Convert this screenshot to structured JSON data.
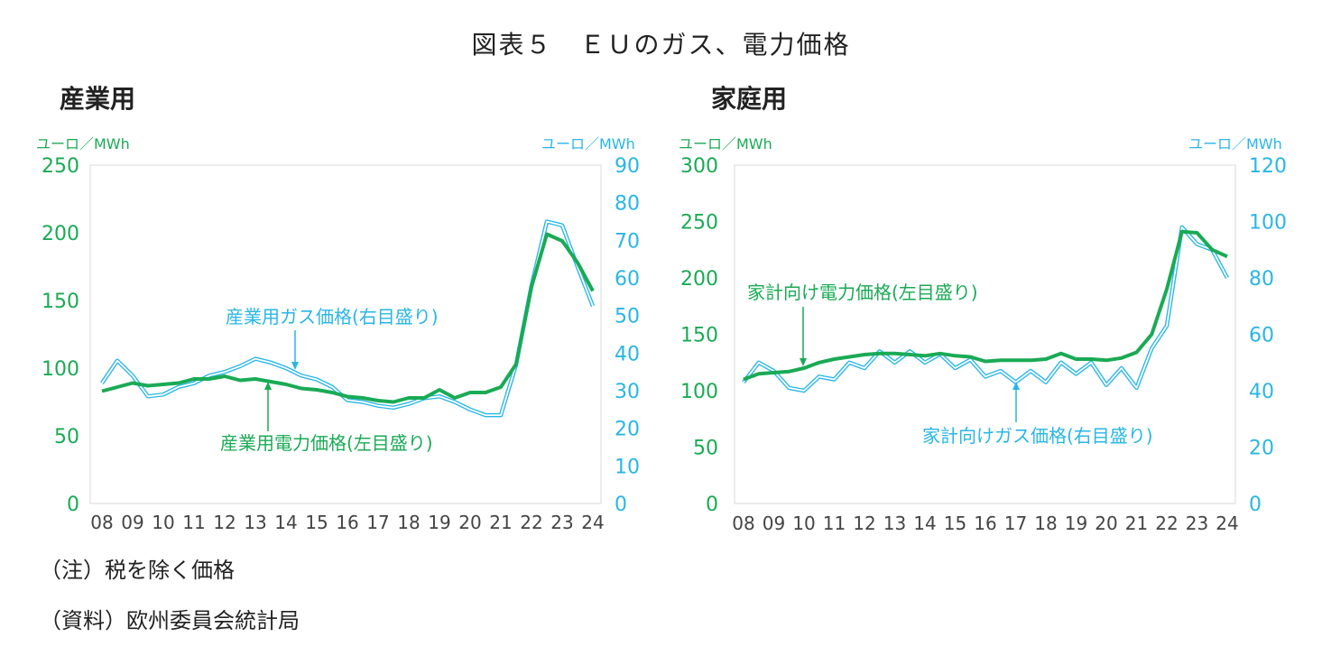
{
  "figure_title": "図表５　ＥＵのガス、電力価格",
  "panels": [
    {
      "title": "産業用",
      "left_unit": "ユーロ／MWh",
      "right_unit": "ユーロ／MWh",
      "gas_label": "産業用ガス価格(右目盛り)",
      "elec_label": "産業用電力価格(左目盛り)"
    },
    {
      "title": "家庭用",
      "left_unit": "ユーロ／MWh",
      "right_unit": "ユーロ／MWh",
      "gas_label": "家計向けガス価格(右目盛り)",
      "elec_label": "家計向け電力価格(左目盛り)"
    }
  ],
  "notes": {
    "note": "（注）税を除く価格",
    "source": "（資料）欧州委員会統計局"
  },
  "colors": {
    "electricity": "#1aaa55",
    "gas": "#29b6e6"
  },
  "chart_data": [
    {
      "type": "line",
      "x_ticks": [
        "08",
        "09",
        "10",
        "11",
        "12",
        "13",
        "14",
        "15",
        "16",
        "17",
        "18",
        "19",
        "20",
        "21",
        "22",
        "23",
        "24"
      ],
      "grid": false,
      "ylim_left": [
        0,
        250
      ],
      "yticks_left": [
        0,
        50,
        100,
        150,
        200,
        250
      ],
      "ylim_right": [
        0,
        90
      ],
      "yticks_right": [
        0,
        10,
        20,
        30,
        40,
        50,
        60,
        70,
        80,
        90
      ],
      "x": [
        2008.0,
        2008.5,
        2009.0,
        2009.5,
        2010.0,
        2010.5,
        2011.0,
        2011.5,
        2012.0,
        2012.5,
        2013.0,
        2013.5,
        2014.0,
        2014.5,
        2015.0,
        2015.5,
        2016.0,
        2016.5,
        2017.0,
        2017.5,
        2018.0,
        2018.5,
        2019.0,
        2019.5,
        2020.0,
        2020.5,
        2021.0,
        2021.5,
        2022.0,
        2022.5,
        2023.0,
        2023.5,
        2024.0
      ],
      "series": [
        {
          "name": "産業用電力価格(左目盛り)",
          "axis": "left",
          "values": [
            83,
            86,
            89,
            87,
            88,
            89,
            92,
            92,
            94,
            91,
            92,
            90,
            88,
            85,
            84,
            82,
            79,
            78,
            76,
            75,
            78,
            78,
            84,
            78,
            82,
            82,
            86,
            103,
            160,
            199,
            194,
            178,
            157
          ]
        },
        {
          "name": "産業用ガス価格(右目盛り)",
          "axis": "right",
          "values": [
            32,
            38,
            34,
            28.5,
            29,
            31,
            32,
            34,
            35,
            36.5,
            38.5,
            37.5,
            36,
            34,
            33,
            31,
            27.5,
            27,
            26,
            25.5,
            26.5,
            28,
            28.5,
            27,
            25,
            23.5,
            23.5,
            37,
            58,
            75,
            74,
            63,
            52.5
          ]
        }
      ]
    },
    {
      "type": "line",
      "x_ticks": [
        "08",
        "09",
        "10",
        "11",
        "12",
        "13",
        "14",
        "15",
        "16",
        "17",
        "18",
        "19",
        "20",
        "21",
        "22",
        "23",
        "24"
      ],
      "grid": false,
      "ylim_left": [
        0,
        300
      ],
      "yticks_left": [
        0,
        50,
        100,
        150,
        200,
        250,
        300
      ],
      "ylim_right": [
        0,
        120
      ],
      "yticks_right": [
        0,
        20,
        40,
        60,
        80,
        100,
        120
      ],
      "x": [
        2008.0,
        2008.5,
        2009.0,
        2009.5,
        2010.0,
        2010.5,
        2011.0,
        2011.5,
        2012.0,
        2012.5,
        2013.0,
        2013.5,
        2014.0,
        2014.5,
        2015.0,
        2015.5,
        2016.0,
        2016.5,
        2017.0,
        2017.5,
        2018.0,
        2018.5,
        2019.0,
        2019.5,
        2020.0,
        2020.5,
        2021.0,
        2021.5,
        2022.0,
        2022.5,
        2023.0,
        2023.5,
        2024.0
      ],
      "series": [
        {
          "name": "家計向け電力価格(左目盛り)",
          "axis": "left",
          "values": [
            110,
            115,
            116,
            117,
            120,
            125,
            128,
            130,
            132,
            133,
            133,
            132,
            131,
            133,
            131,
            130,
            126,
            127,
            127,
            127,
            128,
            133,
            128,
            128,
            127,
            129,
            134,
            150,
            190,
            241,
            240,
            225,
            219
          ]
        },
        {
          "name": "家計向けガス価格(右目盛り)",
          "axis": "right",
          "values": [
            43,
            50,
            47,
            41,
            40,
            45,
            44,
            50,
            48,
            54,
            50,
            54,
            50,
            53,
            48,
            51,
            45,
            47,
            43,
            47,
            43,
            50,
            46,
            50,
            42,
            48,
            41,
            55,
            63,
            98,
            92,
            90,
            80
          ]
        }
      ]
    }
  ]
}
